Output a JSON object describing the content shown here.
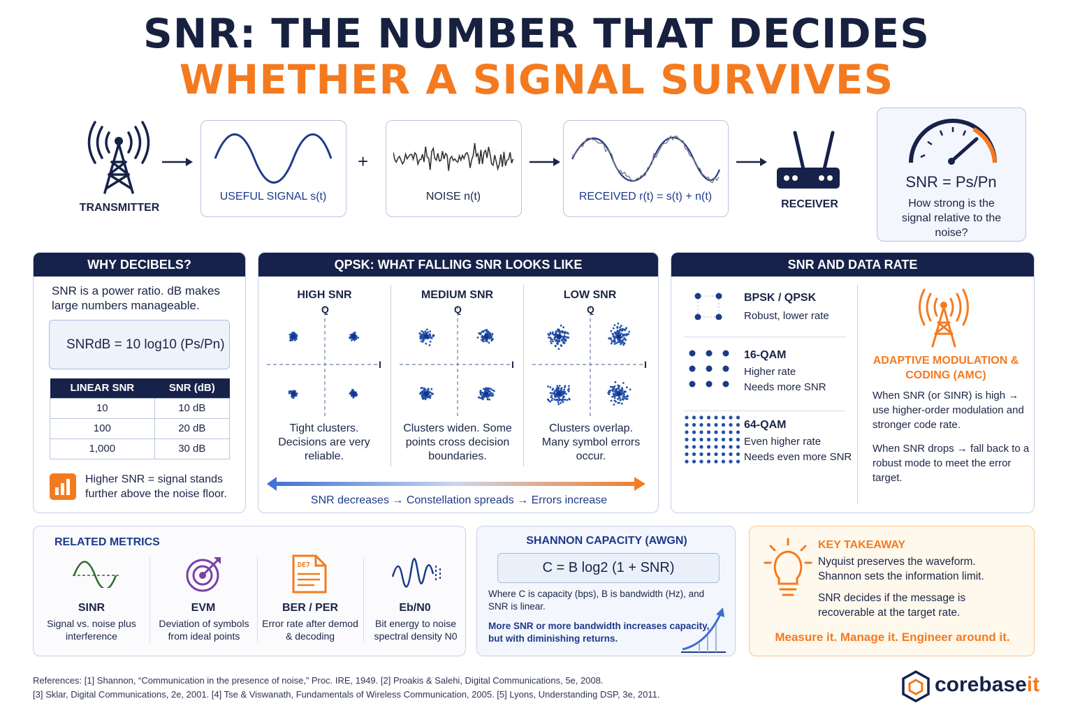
{
  "title": {
    "line1": "SNR: THE NUMBER THAT DECIDES",
    "line2": "WHETHER A SIGNAL SURVIVES"
  },
  "flow": {
    "transmitter": "TRANSMITTER",
    "useful_signal": "USEFUL SIGNAL s(t)",
    "plus": "+",
    "noise": "NOISE  n(t)",
    "received": "RECEIVED  r(t) = s(t) + n(t)",
    "receiver": "RECEIVER",
    "snr_formula": "SNR = Ps/Pn",
    "snr_question": "How strong is the signal relative to the noise?"
  },
  "decibels": {
    "header": "WHY DECIBELS?",
    "intro": "SNR is a power ratio. dB makes large numbers manageable.",
    "formula": "SNRdB = 10 log10 (Ps/Pn)",
    "table_headers": [
      "LINEAR SNR",
      "SNR (dB)"
    ],
    "rows": [
      [
        "10",
        "10 dB"
      ],
      [
        "100",
        "20 dB"
      ],
      [
        "1,000",
        "30 dB"
      ]
    ],
    "note": "Higher SNR = signal stands further above the noise floor."
  },
  "qpsk": {
    "header": "QPSK: WHAT FALLING SNR LOOKS LIKE",
    "panels": [
      {
        "title": "HIGH SNR",
        "caption": "Tight clusters. Decisions are very reliable."
      },
      {
        "title": "MEDIUM SNR",
        "caption": "Clusters widen. Some points cross decision boundaries."
      },
      {
        "title": "LOW SNR",
        "caption": "Clusters overlap. Many symbol errors occur."
      }
    ],
    "axis_q": "Q",
    "axis_i": "I",
    "footer": "SNR decreases → Constellation spreads → Errors increase"
  },
  "datarate": {
    "header": "SNR AND DATA RATE",
    "items": [
      {
        "name": "BPSK / QPSK",
        "line1": "Robust, lower rate",
        "line2": ""
      },
      {
        "name": "16-QAM",
        "line1": "Higher rate",
        "line2": "Needs more SNR"
      },
      {
        "name": "64-QAM",
        "line1": "Even higher rate",
        "line2": "Needs even more SNR"
      }
    ],
    "amc_title": "ADAPTIVE MODULATION & CODING (AMC)",
    "amc_p1": "When SNR (or SINR) is high → use higher-order modulation and stronger code rate.",
    "amc_p2": "When SNR drops → fall back to a robust mode to meet the error target."
  },
  "metrics": {
    "header": "RELATED METRICS",
    "items": [
      {
        "name": "SINR",
        "desc": "Signal vs. noise plus interference"
      },
      {
        "name": "EVM",
        "desc": "Deviation of symbols from ideal points"
      },
      {
        "name": "BER / PER",
        "desc": "Error rate after demod & decoding"
      },
      {
        "name": "Eb/N0",
        "desc": "Bit energy to noise spectral density N0"
      }
    ],
    "doc_icon_text": "DE7"
  },
  "shannon": {
    "header": "SHANNON CAPACITY (AWGN)",
    "formula": "C = B log2 (1 + SNR)",
    "where": "Where C is capacity (bps), B is bandwidth (Hz), and SNR is linear.",
    "note": "More SNR or more bandwidth increases capacity, but with diminishing returns."
  },
  "takeaway": {
    "header": "KEY TAKEAWAY",
    "p1": "Nyquist preserves the waveform. Shannon sets the information limit.",
    "p2": "SNR decides if the message is recoverable at the target rate.",
    "slogan": "Measure it. Manage it. Engineer around it."
  },
  "references": {
    "line1": "References: [1] Shannon, “Communication in the presence of noise,” Proc. IRE, 1949.    [2] Proakis & Salehi, Digital Communications, 5e, 2008.",
    "line2": "[3] Sklar, Digital Communications, 2e, 2001.    [4] Tse & Viswanath, Fundamentals of Wireless Communication, 2005.    [5] Lyons, Understanding DSP, 3e, 2011."
  },
  "brand": {
    "name_main": "corebase",
    "name_accent": "it"
  },
  "colors": {
    "navy": "#16224a",
    "accent": "#f47a1f",
    "blue": "#1d3a8a",
    "dot": "#2250a8"
  }
}
